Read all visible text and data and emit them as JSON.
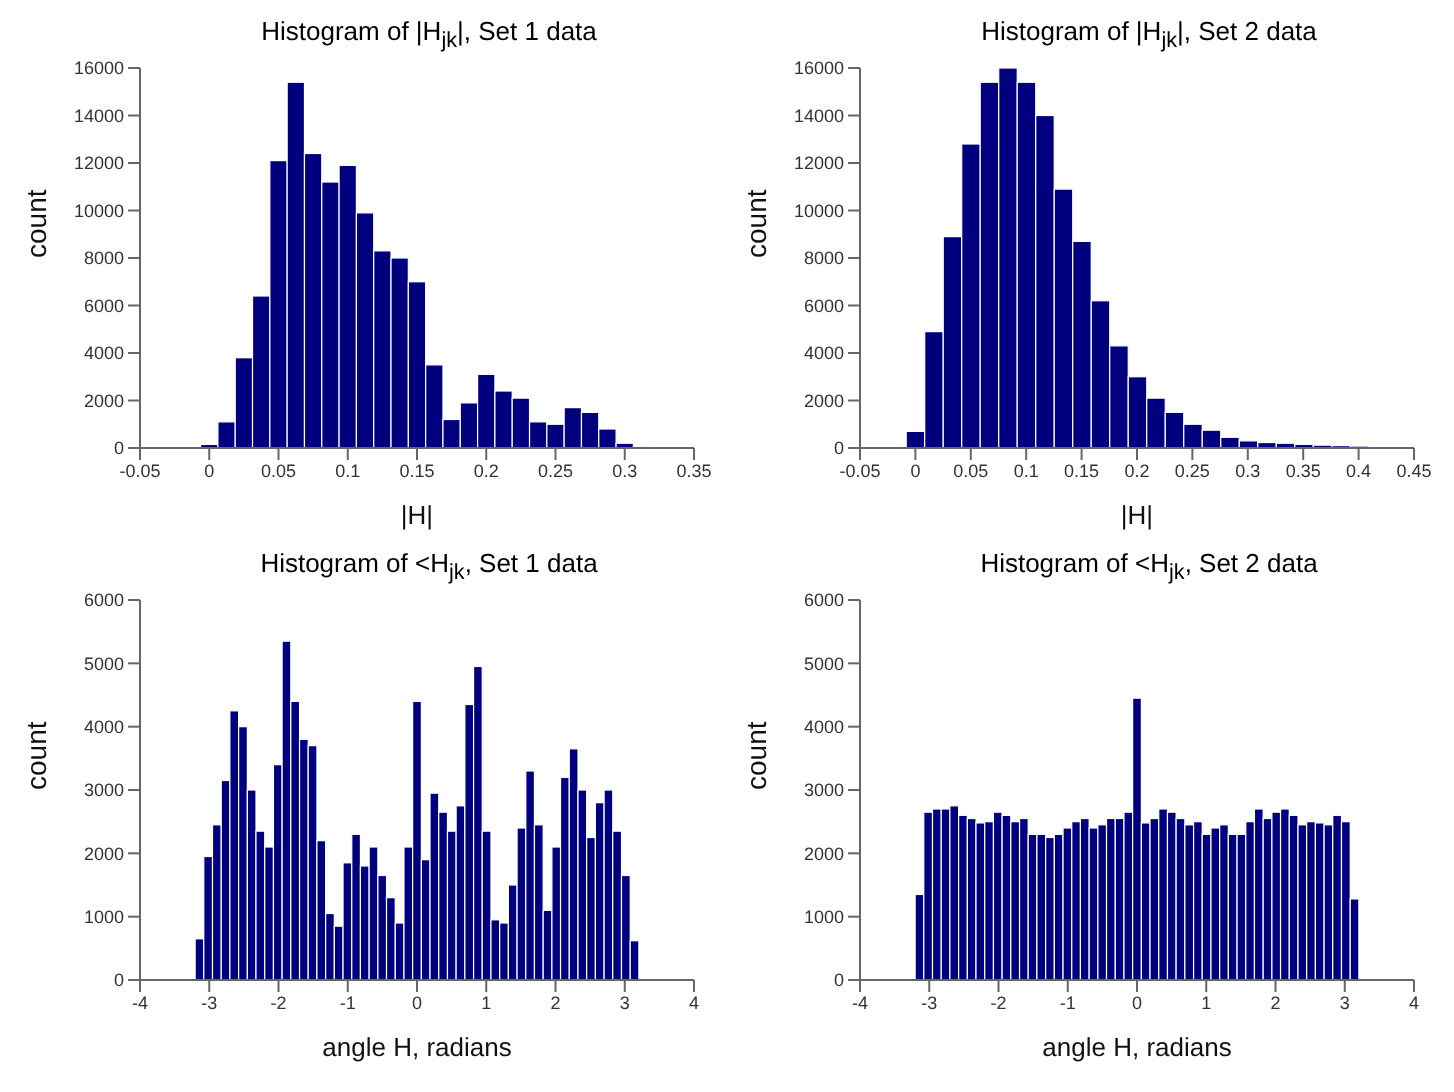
{
  "chart_data": [
    {
      "type": "histogram",
      "title": "Histogram of |H$_{jk}$|, Set 1 data",
      "xlabel": "|H|",
      "ylabel": "count",
      "color": "#00007f",
      "bins": [
        -0.00625,
        0.00625,
        0.01875,
        0.03125,
        0.04375,
        0.05625,
        0.06875,
        0.08125,
        0.09375,
        0.10625,
        0.11875,
        0.13125,
        0.14375,
        0.15625,
        0.16875,
        0.18125,
        0.19375,
        0.20625,
        0.21875,
        0.23125,
        0.24375,
        0.25625,
        0.26875,
        0.28125,
        0.29375,
        0.30625,
        0.31875
      ],
      "values": [
        150,
        1100,
        3800,
        6400,
        12100,
        15400,
        12400,
        11200,
        11900,
        9900,
        8300,
        8000,
        7000,
        3500,
        1200,
        1900,
        3100,
        2400,
        2100,
        1100,
        1000,
        1700,
        1500,
        800,
        200,
        50
      ],
      "xlim": [
        -0.05,
        0.35
      ],
      "xticks": [
        -0.05,
        0,
        0.05,
        0.1,
        0.15,
        0.2,
        0.25,
        0.3,
        0.35
      ],
      "ylim": [
        0,
        16000
      ],
      "yticks": [
        0,
        2000,
        4000,
        6000,
        8000,
        10000,
        12000,
        14000,
        16000
      ]
    },
    {
      "type": "histogram",
      "title": "Histogram of |H$_{jk}$|, Set 2 data",
      "xlabel": "|H|",
      "ylabel": "count",
      "color": "#00007f",
      "bins": [
        -0.0083,
        0.0084,
        0.0251,
        0.0418,
        0.0585,
        0.0752,
        0.0919,
        0.1086,
        0.1253,
        0.142,
        0.1587,
        0.1754,
        0.1921,
        0.2088,
        0.2255,
        0.2422,
        0.2589,
        0.2756,
        0.2923,
        0.309,
        0.3257,
        0.3424,
        0.3591,
        0.3758,
        0.3925,
        0.4092,
        0.4259
      ],
      "values": [
        700,
        4900,
        8900,
        12800,
        15400,
        16000,
        15400,
        14000,
        10900,
        8700,
        6200,
        4300,
        3000,
        2100,
        1500,
        1000,
        750,
        450,
        300,
        230,
        200,
        150,
        120,
        100,
        80,
        60
      ],
      "xlim": [
        -0.05,
        0.45
      ],
      "xticks": [
        -0.05,
        0,
        0.05,
        0.1,
        0.15,
        0.2,
        0.25,
        0.3,
        0.35,
        0.4,
        0.45
      ],
      "ylim": [
        0,
        16000
      ],
      "yticks": [
        0,
        2000,
        4000,
        6000,
        8000,
        10000,
        12000,
        14000,
        16000
      ]
    },
    {
      "type": "histogram",
      "title": "Histogram of <H$_{jk}$, Set 1 data",
      "xlabel": "angle H, radians",
      "ylabel": "count",
      "color": "#00007f",
      "bins": [
        -3.204,
        -3.079,
        -2.953,
        -2.827,
        -2.702,
        -2.576,
        -2.45,
        -2.325,
        -2.199,
        -2.073,
        -1.948,
        -1.822,
        -1.696,
        -1.571,
        -1.445,
        -1.319,
        -1.194,
        -1.068,
        -0.942,
        -0.817,
        -0.691,
        -0.565,
        -0.44,
        -0.314,
        -0.188,
        -0.063,
        0.063,
        0.188,
        0.314,
        0.44,
        0.565,
        0.691,
        0.817,
        0.942,
        1.068,
        1.194,
        1.319,
        1.445,
        1.571,
        1.696,
        1.822,
        1.948,
        2.073,
        2.199,
        2.325,
        2.45,
        2.576,
        2.702,
        2.827,
        2.953,
        3.079,
        3.204
      ],
      "values": [
        650,
        1950,
        2450,
        3150,
        4250,
        4000,
        3000,
        2350,
        2100,
        3400,
        5350,
        4400,
        3800,
        3700,
        2200,
        1050,
        850,
        1850,
        2300,
        1800,
        2100,
        1650,
        1300,
        900,
        2100,
        4400,
        1900,
        2950,
        2650,
        2350,
        2750,
        4350,
        4950,
        2350,
        950,
        900,
        1500,
        2400,
        3300,
        2450,
        1100,
        2100,
        3200,
        3650,
        3000,
        2250,
        2800,
        3000,
        2350,
        1650,
        620
      ],
      "xlim": [
        -4,
        4
      ],
      "xticks": [
        -4,
        -3,
        -2,
        -1,
        0,
        1,
        2,
        3,
        4
      ],
      "ylim": [
        0,
        6000
      ],
      "yticks": [
        0,
        1000,
        2000,
        3000,
        4000,
        5000,
        6000
      ]
    },
    {
      "type": "histogram",
      "title": "Histogram of <H$_{jk}$, Set 2 data",
      "xlabel": "angle H, radians",
      "ylabel": "count",
      "color": "#00007f",
      "bins": [
        -3.204,
        -3.079,
        -2.953,
        -2.827,
        -2.702,
        -2.576,
        -2.45,
        -2.325,
        -2.199,
        -2.073,
        -1.948,
        -1.822,
        -1.696,
        -1.571,
        -1.445,
        -1.319,
        -1.194,
        -1.068,
        -0.942,
        -0.817,
        -0.691,
        -0.565,
        -0.44,
        -0.314,
        -0.188,
        -0.063,
        0.063,
        0.188,
        0.314,
        0.44,
        0.565,
        0.691,
        0.817,
        0.942,
        1.068,
        1.194,
        1.319,
        1.445,
        1.571,
        1.696,
        1.822,
        1.948,
        2.073,
        2.199,
        2.325,
        2.45,
        2.576,
        2.702,
        2.827,
        2.953,
        3.079,
        3.204
      ],
      "values": [
        1350,
        2650,
        2700,
        2700,
        2750,
        2600,
        2550,
        2480,
        2500,
        2650,
        2600,
        2500,
        2550,
        2300,
        2300,
        2250,
        2300,
        2400,
        2500,
        2550,
        2400,
        2450,
        2550,
        2550,
        2650,
        4450,
        2480,
        2550,
        2700,
        2650,
        2550,
        2450,
        2500,
        2300,
        2400,
        2450,
        2300,
        2300,
        2500,
        2700,
        2550,
        2650,
        2700,
        2600,
        2450,
        2500,
        2480,
        2450,
        2600,
        2500,
        1280
      ],
      "xlim": [
        -4,
        4
      ],
      "xticks": [
        -4,
        -3,
        -2,
        -1,
        0,
        1,
        2,
        3,
        4
      ],
      "ylim": [
        0,
        6000
      ],
      "yticks": [
        0,
        1000,
        2000,
        3000,
        4000,
        5000,
        6000
      ]
    }
  ]
}
